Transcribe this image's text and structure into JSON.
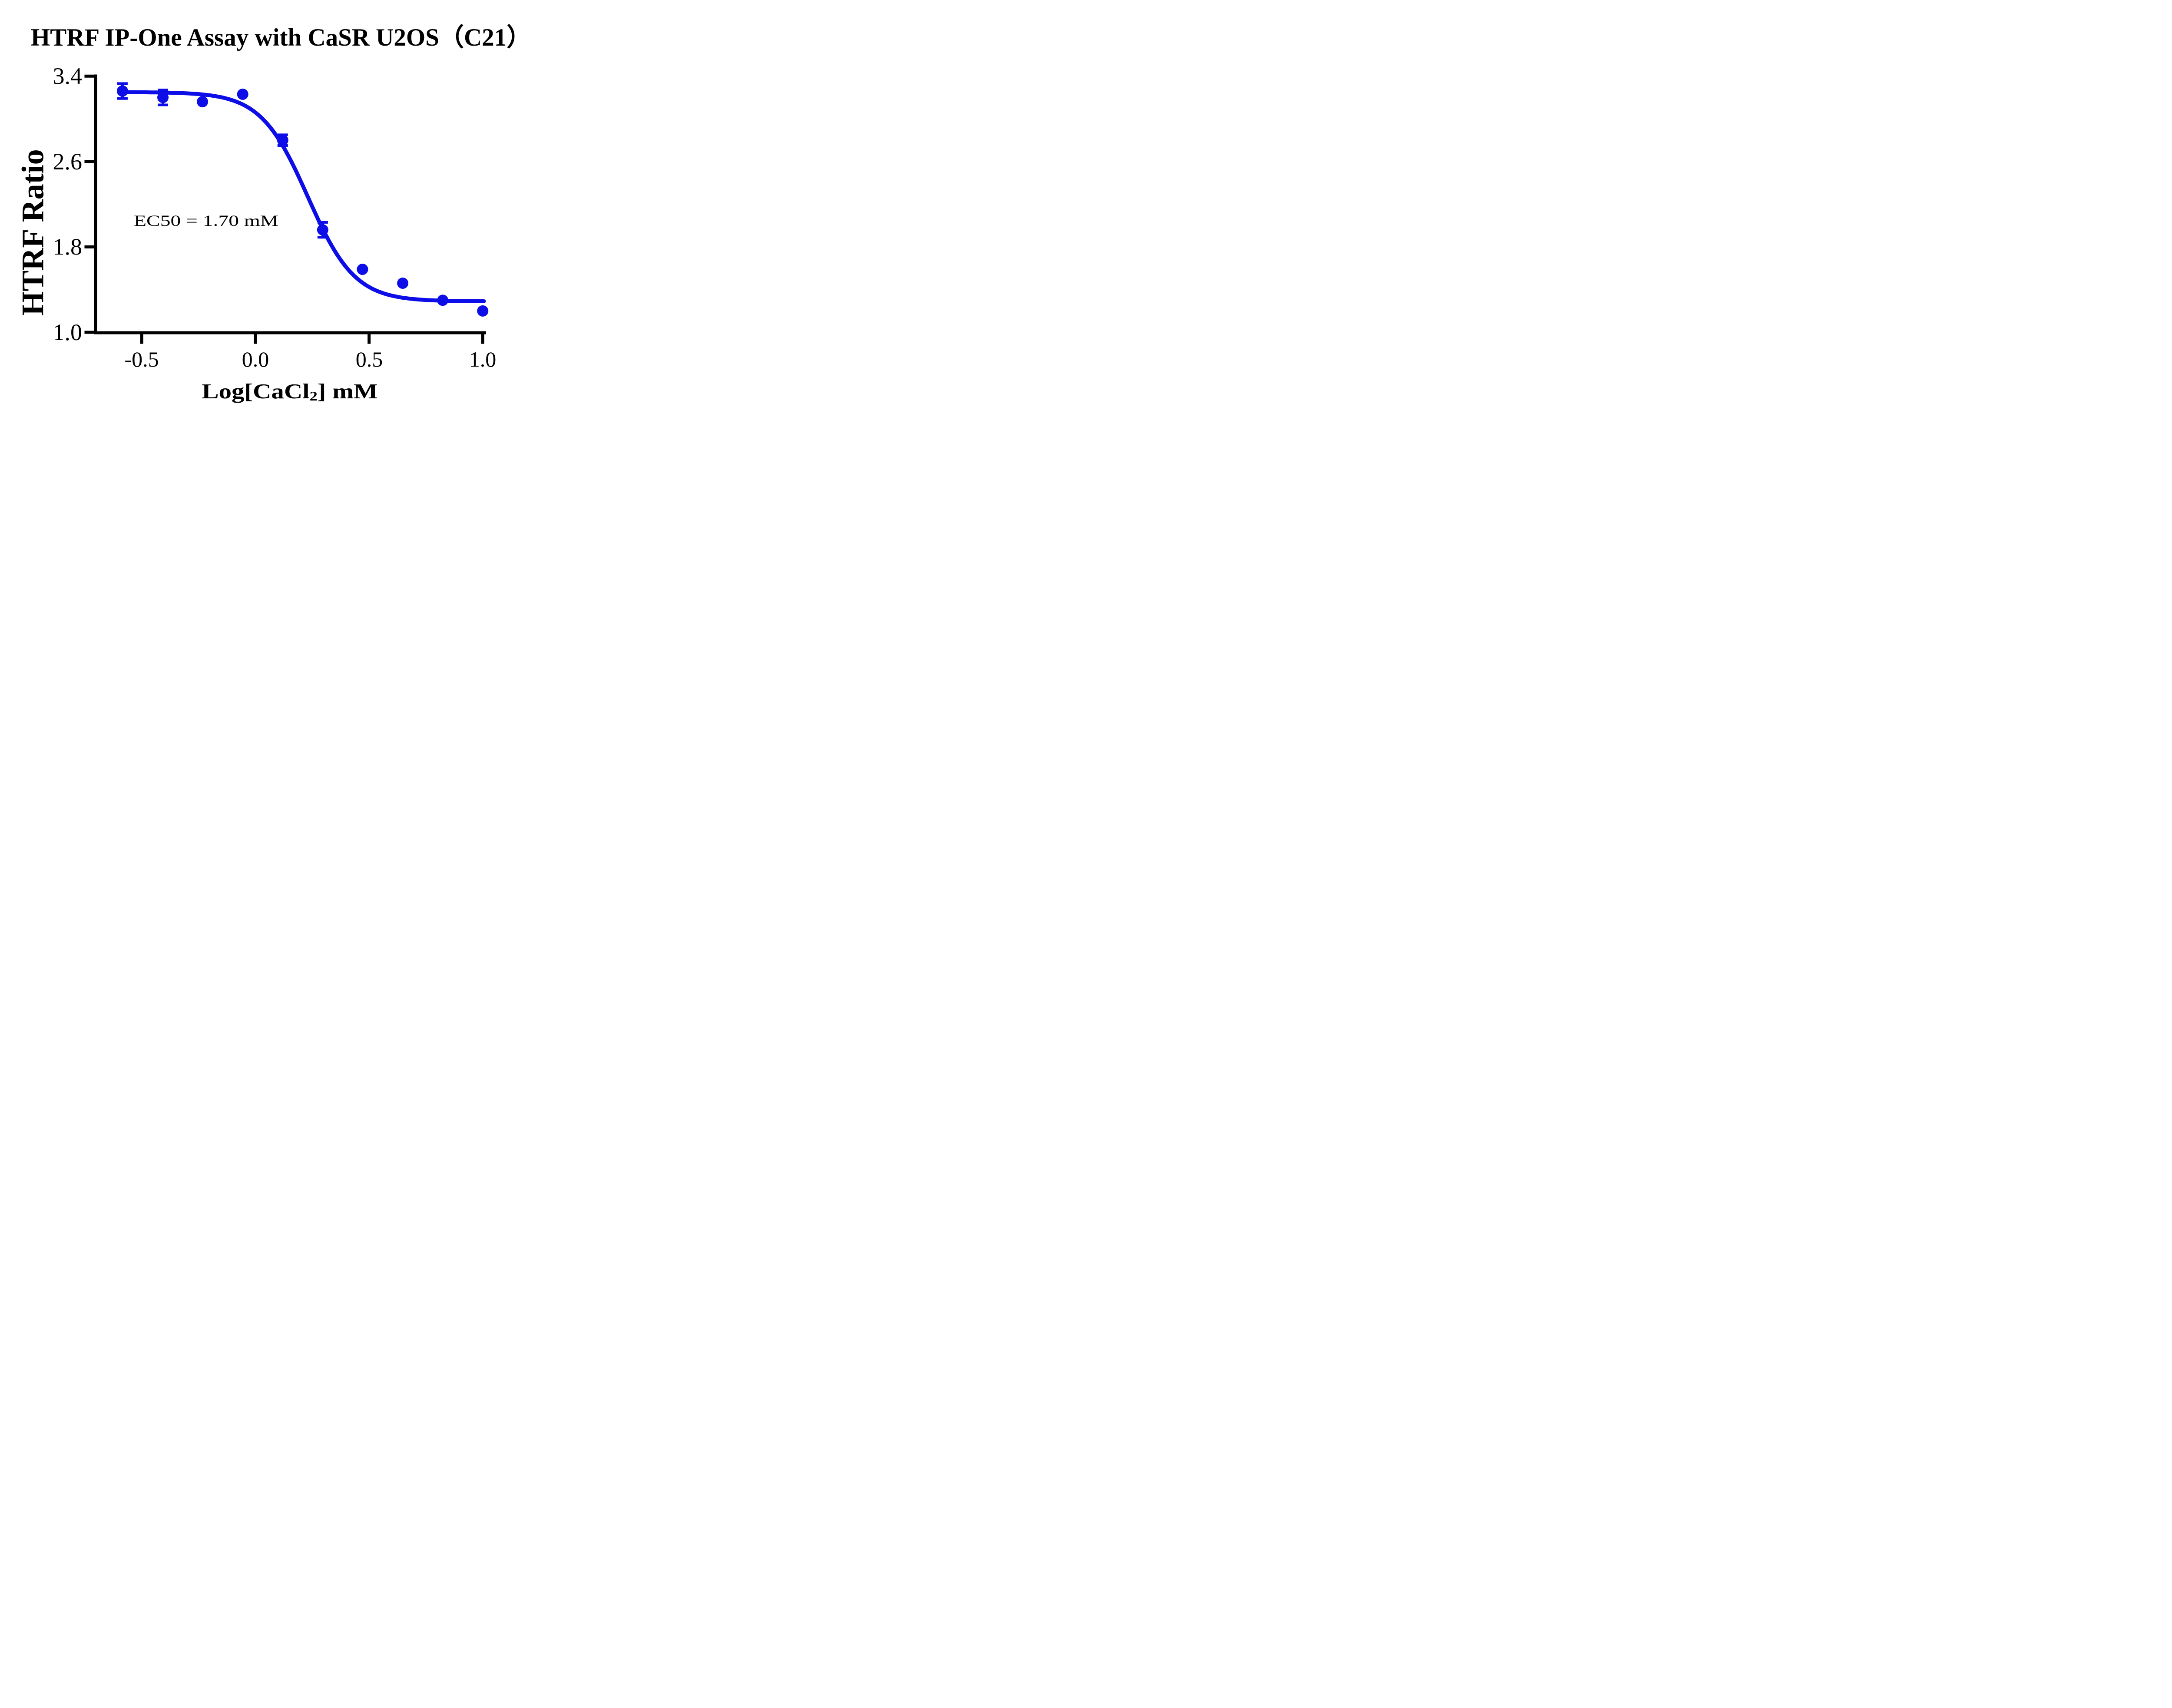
{
  "title": "HTRF IP-One Assay with CaSR U2OS（C21）",
  "annotation": {
    "ec50_text": "EC50 = 1.70 mM"
  },
  "axes": {
    "y": {
      "label": "HTRF Ratio",
      "tick_labels": [
        "3.4",
        "2.6",
        "1.8",
        "1.0"
      ]
    },
    "x": {
      "label_pre": "Log[CaCl",
      "label_sub": "2",
      "label_post": "] mM",
      "tick_labels": [
        "-0.5",
        "0.0",
        "0.5",
        "1.0"
      ]
    }
  },
  "chart_data": {
    "type": "scatter",
    "title": "HTRF IP-One Assay with CaSR U2OS（C21）",
    "xlabel": "Log[CaCl2] mM",
    "ylabel": "HTRF Ratio",
    "xlim": [
      -0.71,
      1.02
    ],
    "ylim": [
      1.0,
      3.4
    ],
    "x_ticks": [
      -0.5,
      0.0,
      0.5,
      1.0
    ],
    "y_ticks": [
      3.4,
      2.6,
      1.8,
      1.0
    ],
    "grid": false,
    "legend": "none",
    "accent_color": "#0d0de8",
    "axis_color": "#000000",
    "series": [
      {
        "name": "CaSR U2OS (C21)",
        "color": "#0d0de8",
        "marker": "circle",
        "x": [
          -0.585,
          -0.407,
          -0.233,
          -0.056,
          0.12,
          0.296,
          0.471,
          0.648,
          0.824,
          1.0
        ],
        "y": [
          3.26,
          3.2,
          3.16,
          3.23,
          2.8,
          1.96,
          1.59,
          1.46,
          1.3,
          1.2
        ],
        "err": [
          0.07,
          0.07,
          0,
          0,
          0.05,
          0.07,
          0,
          0,
          0,
          0
        ]
      }
    ],
    "fit_curve": {
      "model": "four_parameter_logistic",
      "top": 3.25,
      "bottom": 1.29,
      "log_ec50": 0.2304,
      "hill_slope": 4.2,
      "ec50_mM": 1.7,
      "x_start": -0.585,
      "x_end": 1.005
    },
    "annotations": [
      "EC50 = 1.70 mM"
    ]
  }
}
